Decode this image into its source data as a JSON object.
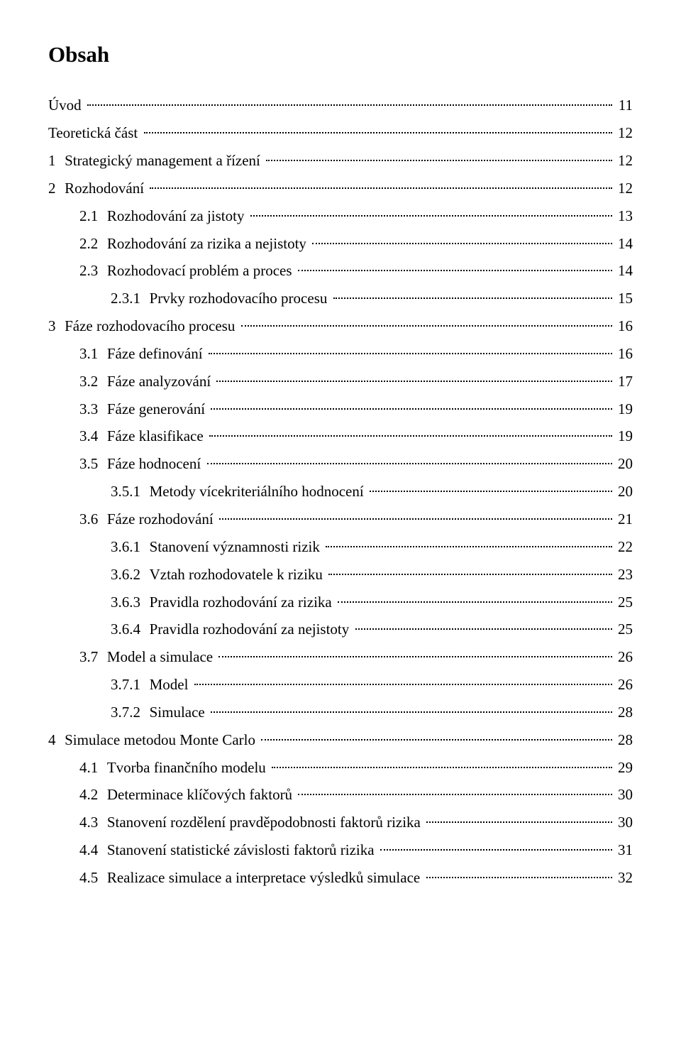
{
  "title": "Obsah",
  "entries": [
    {
      "indent": 0,
      "number": "",
      "label": "Úvod",
      "page": "11"
    },
    {
      "indent": 0,
      "number": "",
      "label": "Teoretická část",
      "page": "12"
    },
    {
      "indent": 0,
      "number": "1",
      "label": "Strategický management a řízení",
      "page": "12"
    },
    {
      "indent": 0,
      "number": "2",
      "label": "Rozhodování",
      "page": "12"
    },
    {
      "indent": 1,
      "number": "2.1",
      "label": "Rozhodování za jistoty",
      "page": "13"
    },
    {
      "indent": 1,
      "number": "2.2",
      "label": "Rozhodování za rizika a nejistoty",
      "page": "14"
    },
    {
      "indent": 1,
      "number": "2.3",
      "label": "Rozhodovací problém a proces",
      "page": "14"
    },
    {
      "indent": 2,
      "number": "2.3.1",
      "label": "Prvky rozhodovacího procesu",
      "page": "15"
    },
    {
      "indent": 0,
      "number": "3",
      "label": "Fáze rozhodovacího procesu",
      "page": "16"
    },
    {
      "indent": 1,
      "number": "3.1",
      "label": "Fáze definování",
      "page": "16"
    },
    {
      "indent": 1,
      "number": "3.2",
      "label": "Fáze analyzování",
      "page": "17"
    },
    {
      "indent": 1,
      "number": "3.3",
      "label": "Fáze generování",
      "page": "19"
    },
    {
      "indent": 1,
      "number": "3.4",
      "label": "Fáze klasifikace",
      "page": "19"
    },
    {
      "indent": 1,
      "number": "3.5",
      "label": "Fáze hodnocení",
      "page": "20"
    },
    {
      "indent": 2,
      "number": "3.5.1",
      "label": "Metody vícekriteriálního hodnocení",
      "page": "20"
    },
    {
      "indent": 1,
      "number": "3.6",
      "label": "Fáze rozhodování",
      "page": "21"
    },
    {
      "indent": 2,
      "number": "3.6.1",
      "label": "Stanovení významnosti rizik",
      "page": "22"
    },
    {
      "indent": 2,
      "number": "3.6.2",
      "label": "Vztah rozhodovatele k riziku",
      "page": "23"
    },
    {
      "indent": 2,
      "number": "3.6.3",
      "label": "Pravidla rozhodování za rizika",
      "page": "25"
    },
    {
      "indent": 2,
      "number": "3.6.4",
      "label": "Pravidla rozhodování za nejistoty",
      "page": "25"
    },
    {
      "indent": 1,
      "number": "3.7",
      "label": "Model a simulace",
      "page": "26"
    },
    {
      "indent": 2,
      "number": "3.7.1",
      "label": "Model",
      "page": "26"
    },
    {
      "indent": 2,
      "number": "3.7.2",
      "label": "Simulace",
      "page": "28"
    },
    {
      "indent": 0,
      "number": "4",
      "label": "Simulace metodou Monte Carlo",
      "page": "28"
    },
    {
      "indent": 1,
      "number": "4.1",
      "label": "Tvorba finančního modelu",
      "page": "29"
    },
    {
      "indent": 1,
      "number": "4.2",
      "label": "Determinace klíčových faktorů",
      "page": "30"
    },
    {
      "indent": 1,
      "number": "4.3",
      "label": "Stanovení rozdělení pravděpodobnosti faktorů rizika",
      "page": "30"
    },
    {
      "indent": 1,
      "number": "4.4",
      "label": "Stanovení statistické závislosti faktorů rizika",
      "page": "31"
    },
    {
      "indent": 1,
      "number": "4.5",
      "label": "Realizace simulace a interpretace výsledků simulace",
      "page": "32"
    }
  ]
}
